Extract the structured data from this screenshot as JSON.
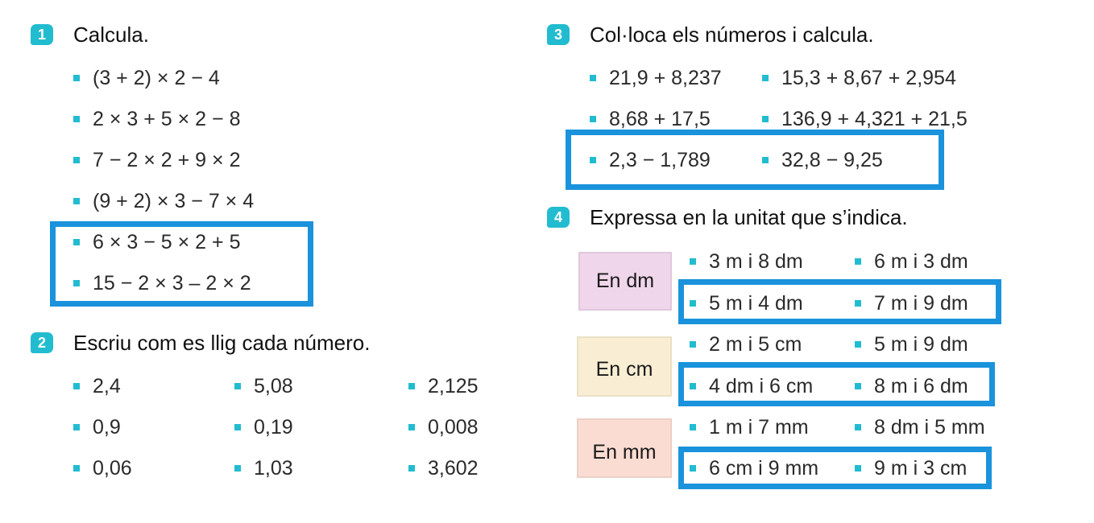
{
  "ex1": {
    "num": "1",
    "title": "Calcula.",
    "items": [
      "(3 + 2) × 2 − 4",
      "2 × 3 + 5 × 2 − 8",
      "7 − 2 × 2 + 9 × 2",
      "(9 + 2) × 3 − 7 × 4",
      "6 × 3 − 5 × 2 + 5",
      "15 − 2 × 3 – 2 × 2"
    ]
  },
  "ex2": {
    "num": "2",
    "title": "Escriu com es llig cada número.",
    "items": [
      "2,4",
      "5,08",
      "2,125",
      "0,9",
      "0,19",
      "0,008",
      "0,06",
      "1,03",
      "3,602"
    ]
  },
  "ex3": {
    "num": "3",
    "title": "Col·loca els números i calcula.",
    "items": [
      "21,9 + 8,237",
      "15,3 + 8,67 + 2,954",
      "8,68 + 17,5",
      "136,9 + 4,321 + 21,5",
      "2,3 − 1,789",
      "32,8 − 9,25"
    ]
  },
  "ex4": {
    "num": "4",
    "title": "Expressa en la unitat que s’indica.",
    "labels": [
      "En dm",
      "En cm",
      "En mm"
    ],
    "items": [
      "3 m i 8 dm",
      "6 m i 3 dm",
      "5 m i 4 dm",
      "7 m i 9 dm",
      "2 m i 5 cm",
      "5 m i 9 dm",
      "4 dm i 6 cm",
      "8 m i 6 dm",
      "1 m i 7 mm",
      "8 dm i 5 mm",
      "6 cm i 9 mm",
      "9 m i 3 cm"
    ]
  },
  "colors": {
    "accent": "#22bcd0",
    "highlight": "#1a93dc",
    "dm": "#efd6ea",
    "cm": "#f9eed3",
    "mm": "#fbdcd2"
  }
}
